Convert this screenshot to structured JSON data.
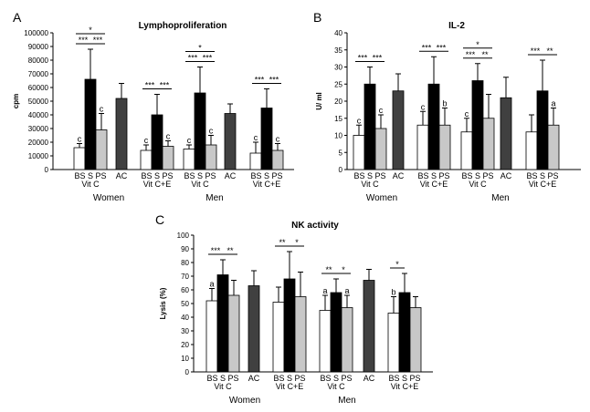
{
  "chart_data": [
    {
      "type": "bar",
      "panel": "A",
      "title": "Lymphoproliferation",
      "ylabel": "cpm",
      "ylim": [
        0,
        100000
      ],
      "ytick_labels": [
        "0",
        "10000",
        "20000",
        "30000",
        "40000",
        "50000",
        "60000",
        "70000",
        "80000",
        "90000",
        "100000"
      ],
      "groups": [
        {
          "label_line1": "BS S PS",
          "label_line2": "Vit C",
          "bars": [
            {
              "type": "BS",
              "value": 16000,
              "err": 3000,
              "letter": "c"
            },
            {
              "type": "S",
              "value": 66000,
              "err": 22000,
              "letter": ""
            },
            {
              "type": "PS",
              "value": 29000,
              "err": 12000,
              "letter": "c"
            }
          ],
          "sig": [
            {
              "from": 0,
              "to": 1,
              "label": "***",
              "level": 1
            },
            {
              "from": 1,
              "to": 2,
              "label": "***",
              "level": 1
            },
            {
              "from": 0,
              "to": 2,
              "label": "*",
              "level": 2
            }
          ]
        },
        {
          "label_line1": "AC",
          "label_line2": "",
          "bars": [
            {
              "type": "AC",
              "value": 52000,
              "err": 11000,
              "letter": ""
            }
          ],
          "sig": []
        },
        {
          "label_line1": "BS S PS",
          "label_line2": "Vit C+E",
          "bars": [
            {
              "type": "BS",
              "value": 14000,
              "err": 4000,
              "letter": "c"
            },
            {
              "type": "S",
              "value": 40000,
              "err": 15000,
              "letter": ""
            },
            {
              "type": "PS",
              "value": 17000,
              "err": 4000,
              "letter": "c"
            }
          ],
          "sig": [
            {
              "from": 0,
              "to": 1,
              "label": "***",
              "level": 1
            },
            {
              "from": 1,
              "to": 2,
              "label": "***",
              "level": 1
            }
          ]
        },
        {
          "label_line1": "BS S PS",
          "label_line2": "Vit C",
          "bars": [
            {
              "type": "BS",
              "value": 15000,
              "err": 3000,
              "letter": "c"
            },
            {
              "type": "S",
              "value": 56000,
              "err": 19000,
              "letter": ""
            },
            {
              "type": "PS",
              "value": 18000,
              "err": 7000,
              "letter": "c"
            }
          ],
          "sig": [
            {
              "from": 0,
              "to": 1,
              "label": "***",
              "level": 1
            },
            {
              "from": 1,
              "to": 2,
              "label": "***",
              "level": 1
            },
            {
              "from": 0,
              "to": 2,
              "label": "*",
              "level": 2
            }
          ]
        },
        {
          "label_line1": "AC",
          "label_line2": "",
          "bars": [
            {
              "type": "AC",
              "value": 41000,
              "err": 7000,
              "letter": ""
            }
          ],
          "sig": []
        },
        {
          "label_line1": "BS S PS",
          "label_line2": "Vit C+E",
          "bars": [
            {
              "type": "BS",
              "value": 12000,
              "err": 8000,
              "letter": "c"
            },
            {
              "type": "S",
              "value": 45000,
              "err": 14000,
              "letter": ""
            },
            {
              "type": "PS",
              "value": 14000,
              "err": 5000,
              "letter": "c"
            }
          ],
          "sig": [
            {
              "from": 0,
              "to": 1,
              "label": "***",
              "level": 1
            },
            {
              "from": 1,
              "to": 2,
              "label": "***",
              "level": 1
            }
          ]
        }
      ],
      "sex_labels": [
        "Women",
        "Men"
      ]
    },
    {
      "type": "bar",
      "panel": "B",
      "title": "IL-2",
      "ylabel": "U/ ml",
      "ylim": [
        0,
        40
      ],
      "ytick_labels": [
        "0",
        "5",
        "10",
        "15",
        "20",
        "25",
        "30",
        "35",
        "40"
      ],
      "groups": [
        {
          "label_line1": "BS S PS",
          "label_line2": "Vit C",
          "bars": [
            {
              "type": "BS",
              "value": 10,
              "err": 3,
              "letter": "c"
            },
            {
              "type": "S",
              "value": 25,
              "err": 5,
              "letter": ""
            },
            {
              "type": "PS",
              "value": 12,
              "err": 4,
              "letter": "c"
            }
          ],
          "sig": [
            {
              "from": 0,
              "to": 1,
              "label": "***",
              "level": 1
            },
            {
              "from": 1,
              "to": 2,
              "label": "***",
              "level": 1
            }
          ]
        },
        {
          "label_line1": "AC",
          "label_line2": "",
          "bars": [
            {
              "type": "AC",
              "value": 23,
              "err": 5,
              "letter": ""
            }
          ],
          "sig": []
        },
        {
          "label_line1": "BS S PS",
          "label_line2": "Vit C+E",
          "bars": [
            {
              "type": "BS",
              "value": 13,
              "err": 4,
              "letter": "c"
            },
            {
              "type": "S",
              "value": 25,
              "err": 8,
              "letter": ""
            },
            {
              "type": "PS",
              "value": 13,
              "err": 5,
              "letter": "b"
            }
          ],
          "sig": [
            {
              "from": 0,
              "to": 1,
              "label": "***",
              "level": 1
            },
            {
              "from": 1,
              "to": 2,
              "label": "***",
              "level": 1
            }
          ]
        },
        {
          "label_line1": "BS S PS",
          "label_line2": "Vit C",
          "bars": [
            {
              "type": "BS",
              "value": 11,
              "err": 4,
              "letter": "c"
            },
            {
              "type": "S",
              "value": 26,
              "err": 5,
              "letter": ""
            },
            {
              "type": "PS",
              "value": 15,
              "err": 7,
              "letter": ""
            }
          ],
          "sig": [
            {
              "from": 0,
              "to": 1,
              "label": "***",
              "level": 1
            },
            {
              "from": 1,
              "to": 2,
              "label": "**",
              "level": 1
            },
            {
              "from": 0,
              "to": 2,
              "label": "*",
              "level": 2
            }
          ]
        },
        {
          "label_line1": "AC",
          "label_line2": "",
          "bars": [
            {
              "type": "AC",
              "value": 21,
              "err": 6,
              "letter": ""
            }
          ],
          "sig": []
        },
        {
          "label_line1": "BS S PS",
          "label_line2": "Vit C+E",
          "bars": [
            {
              "type": "BS",
              "value": 11,
              "err": 5,
              "letter": ""
            },
            {
              "type": "S",
              "value": 23,
              "err": 9,
              "letter": ""
            },
            {
              "type": "PS",
              "value": 13,
              "err": 5,
              "letter": "a"
            }
          ],
          "sig": [
            {
              "from": 0,
              "to": 1,
              "label": "***",
              "level": 1
            },
            {
              "from": 1,
              "to": 2,
              "label": "**",
              "level": 1
            }
          ]
        }
      ],
      "sex_labels": [
        "Women",
        "Men"
      ]
    },
    {
      "type": "bar",
      "panel": "C",
      "title": "NK activity",
      "ylabel": "Lysis (%)",
      "ylim": [
        0,
        100
      ],
      "ytick_labels": [
        "0",
        "10",
        "20",
        "30",
        "40",
        "50",
        "60",
        "70",
        "80",
        "90",
        "100"
      ],
      "groups": [
        {
          "label_line1": "BS S PS",
          "label_line2": "Vit C",
          "bars": [
            {
              "type": "BS",
              "value": 52,
              "err": 9,
              "letter": "a"
            },
            {
              "type": "S",
              "value": 71,
              "err": 11,
              "letter": ""
            },
            {
              "type": "PS",
              "value": 56,
              "err": 11,
              "letter": ""
            }
          ],
          "sig": [
            {
              "from": 0,
              "to": 1,
              "label": "***",
              "level": 1
            },
            {
              "from": 1,
              "to": 2,
              "label": "**",
              "level": 1
            }
          ]
        },
        {
          "label_line1": "AC",
          "label_line2": "",
          "bars": [
            {
              "type": "AC",
              "value": 63,
              "err": 11,
              "letter": ""
            }
          ],
          "sig": []
        },
        {
          "label_line1": "BS S PS",
          "label_line2": "Vit C+E",
          "bars": [
            {
              "type": "BS",
              "value": 51,
              "err": 11,
              "letter": ""
            },
            {
              "type": "S",
              "value": 68,
              "err": 20,
              "letter": ""
            },
            {
              "type": "PS",
              "value": 55,
              "err": 18,
              "letter": ""
            }
          ],
          "sig": [
            {
              "from": 0,
              "to": 1,
              "label": "**",
              "level": 1
            },
            {
              "from": 1,
              "to": 2,
              "label": "*",
              "level": 1
            }
          ]
        },
        {
          "label_line1": "BS S PS",
          "label_line2": "Vit C",
          "bars": [
            {
              "type": "BS",
              "value": 45,
              "err": 11,
              "letter": "a"
            },
            {
              "type": "S",
              "value": 58,
              "err": 10,
              "letter": ""
            },
            {
              "type": "PS",
              "value": 47,
              "err": 9,
              "letter": "a"
            }
          ],
          "sig": [
            {
              "from": 0,
              "to": 1,
              "label": "**",
              "level": 1
            },
            {
              "from": 1,
              "to": 2,
              "label": "*",
              "level": 1
            }
          ]
        },
        {
          "label_line1": "AC",
          "label_line2": "",
          "bars": [
            {
              "type": "AC",
              "value": 67,
              "err": 8,
              "letter": ""
            }
          ],
          "sig": []
        },
        {
          "label_line1": "BS S PS",
          "label_line2": "Vit C+E",
          "bars": [
            {
              "type": "BS",
              "value": 43,
              "err": 12,
              "letter": "b"
            },
            {
              "type": "S",
              "value": 58,
              "err": 14,
              "letter": ""
            },
            {
              "type": "PS",
              "value": 47,
              "err": 8,
              "letter": ""
            }
          ],
          "sig": [
            {
              "from": 0,
              "to": 1,
              "label": "*",
              "level": 1
            }
          ]
        }
      ],
      "sex_labels": [
        "Women",
        "Men"
      ]
    }
  ],
  "colors": {
    "BS": "#ffffff",
    "S": "#000000",
    "PS": "#c8c8c8",
    "AC": "#404040"
  }
}
